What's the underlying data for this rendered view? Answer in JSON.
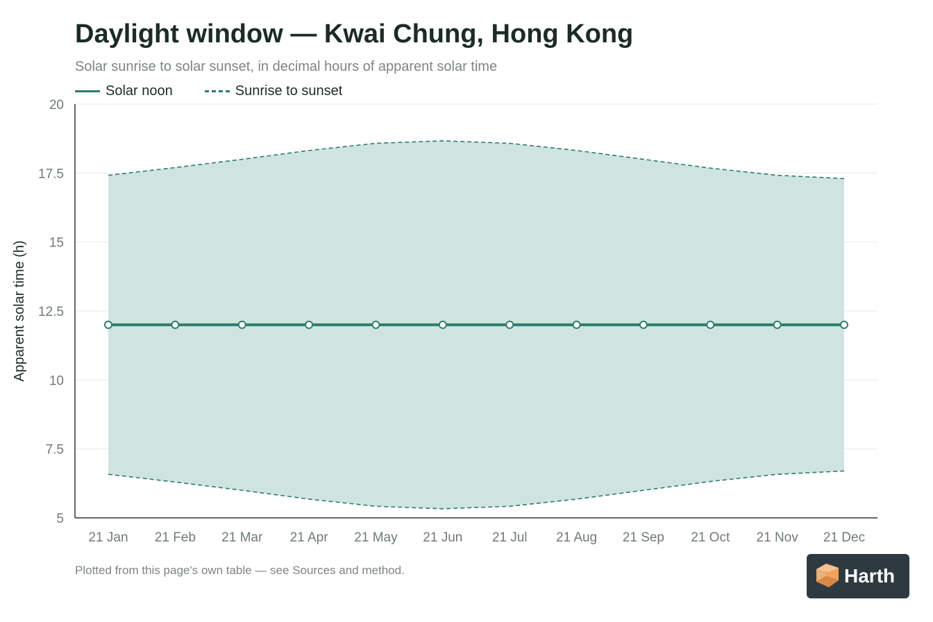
{
  "title": "Daylight window — Kwai Chung, Hong Kong",
  "subtitle": "Solar sunrise to solar sunset, in decimal hours of apparent solar time",
  "footnote": "Plotted from this page's own table — see Sources and method.",
  "logo": {
    "text": "Harth",
    "icon": "cube-logo-icon"
  },
  "colors": {
    "accent": "#2e7b70",
    "band_fill": "#cfe4e0",
    "axis": "#333333",
    "grid": "#e6e9e8",
    "tick_text": "#6e7a76"
  },
  "chart_data": {
    "type": "line",
    "title": "Daylight window — Kwai Chung, Hong Kong",
    "subtitle": "Solar sunrise to solar sunset, in decimal hours of apparent solar time",
    "xlabel": "",
    "ylabel": "Apparent solar time (h)",
    "categories": [
      "21 Jan",
      "21 Feb",
      "21 Mar",
      "21 Apr",
      "21 May",
      "21 Jun",
      "21 Jul",
      "21 Aug",
      "21 Sep",
      "21 Oct",
      "21 Nov",
      "21 Dec"
    ],
    "ylim": [
      5,
      20
    ],
    "yticks": [
      5,
      7.5,
      10,
      12.5,
      15,
      17.5,
      20
    ],
    "ytick_labels": [
      "5",
      "7.5",
      "10",
      "12.5",
      "15",
      "17.5",
      "20"
    ],
    "grid": true,
    "legend_position": "top-left",
    "series": [
      {
        "name": "Solar noon",
        "style": "solid",
        "markers": true,
        "values": [
          12,
          12,
          12,
          12,
          12,
          12,
          12,
          12,
          12,
          12,
          12,
          12
        ]
      },
      {
        "name": "Sunrise to sunset",
        "style": "dashed",
        "band": true,
        "sunrise": [
          6.58,
          6.3,
          6.0,
          5.68,
          5.42,
          5.33,
          5.42,
          5.68,
          6.0,
          6.32,
          6.58,
          6.7
        ],
        "sunset": [
          17.42,
          17.7,
          18.0,
          18.32,
          18.58,
          18.67,
          18.58,
          18.32,
          18.0,
          17.68,
          17.42,
          17.3
        ]
      }
    ]
  }
}
